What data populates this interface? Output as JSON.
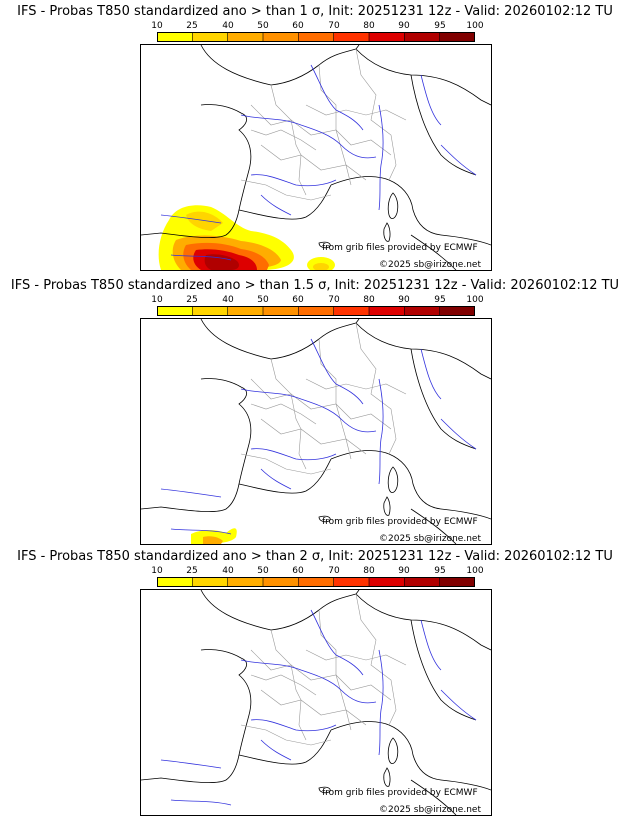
{
  "colorbar": {
    "ticks": [
      "10",
      "25",
      "40",
      "50",
      "60",
      "70",
      "80",
      "90",
      "95",
      "100"
    ],
    "colors": [
      "#ffff00",
      "#ffd500",
      "#ffad00",
      "#ff9100",
      "#ff6d00",
      "#ff3300",
      "#dd0000",
      "#b00000",
      "#800000"
    ]
  },
  "panels": [
    {
      "title": "IFS - Probas T850  standardized ano > than 1 σ, Init: 20251231 12z - Valid: 20260102:12 TU",
      "credit_grib": "from grib files provided by ECMWF",
      "credit_copy": "©2025 sb@irizone.net"
    },
    {
      "title": "IFS - Probas T850  standardized ano > than 1.5 σ, Init: 20251231 12z - Valid: 20260102:12 TU",
      "credit_grib": "from grib files provided by ECMWF",
      "credit_copy": "©2025 sb@irizone.net"
    },
    {
      "title": "IFS - Probas T850  standardized ano > than 2 σ, Init: 20251231 12z - Valid: 20260102:12 TU",
      "credit_grib": "from grib files provided by ECMWF",
      "credit_copy": "©2025 sb@irizone.net"
    }
  ]
}
